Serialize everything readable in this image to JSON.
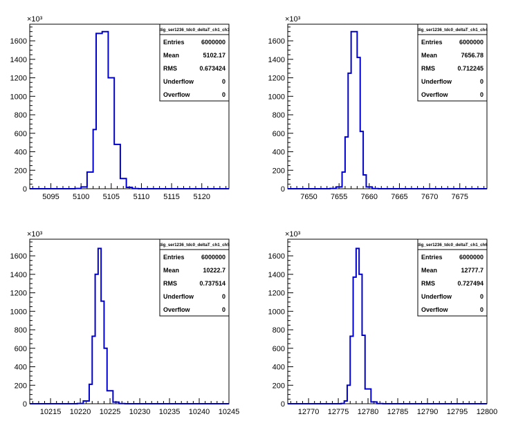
{
  "chart_data": [
    {
      "type": "histogram",
      "title": "dig_ser1236_tdc0_deltaT_ch1_ch3",
      "y_multiplier_label": "×10³",
      "xlim": [
        5091.5,
        5124.5
      ],
      "ylim": [
        0,
        1780
      ],
      "x_ticks": [
        5095,
        5100,
        5105,
        5110,
        5115,
        5120
      ],
      "y_ticks": [
        0,
        200,
        400,
        600,
        800,
        1000,
        1200,
        1400,
        1600
      ],
      "bins": [
        {
          "x": 5099.0,
          "y": 3
        },
        {
          "x": 5100.0,
          "y": 20
        },
        {
          "x": 5101.0,
          "y": 180
        },
        {
          "x": 5102.0,
          "y": 640
        },
        {
          "x": 5102.5,
          "y": 1680
        },
        {
          "x": 5103.5,
          "y": 1700
        },
        {
          "x": 5104.5,
          "y": 1200
        },
        {
          "x": 5105.5,
          "y": 480
        },
        {
          "x": 5106.5,
          "y": 110
        },
        {
          "x": 5107.5,
          "y": 15
        },
        {
          "x": 5108.5,
          "y": 2
        }
      ],
      "stats": [
        {
          "label": "Entries",
          "value": "6000000"
        },
        {
          "label": "Mean",
          "value": "5102.17"
        },
        {
          "label": "RMS",
          "value": "0.673424"
        },
        {
          "label": "Underflow",
          "value": "0"
        },
        {
          "label": "Overflow",
          "value": "0"
        }
      ]
    },
    {
      "type": "histogram",
      "title": "dig_ser1236_tdc0_deltaT_ch1_ch4",
      "y_multiplier_label": "×10³",
      "xlim": [
        7646.5,
        7679.5
      ],
      "ylim": [
        0,
        1780
      ],
      "x_ticks": [
        7650,
        7655,
        7660,
        7665,
        7670,
        7675
      ],
      "y_ticks": [
        0,
        200,
        400,
        600,
        800,
        1000,
        1200,
        1400,
        1600
      ],
      "bins": [
        {
          "x": 7653.5,
          "y": 3
        },
        {
          "x": 7654.5,
          "y": 20
        },
        {
          "x": 7655.5,
          "y": 180
        },
        {
          "x": 7656.0,
          "y": 560
        },
        {
          "x": 7656.5,
          "y": 1250
        },
        {
          "x": 7657.0,
          "y": 1700
        },
        {
          "x": 7658.0,
          "y": 1420
        },
        {
          "x": 7658.5,
          "y": 620
        },
        {
          "x": 7659.0,
          "y": 150
        },
        {
          "x": 7659.5,
          "y": 20
        },
        {
          "x": 7660.5,
          "y": 2
        }
      ],
      "stats": [
        {
          "label": "Entries",
          "value": "6000000"
        },
        {
          "label": "Mean",
          "value": "7656.78"
        },
        {
          "label": "RMS",
          "value": "0.712245"
        },
        {
          "label": "Underflow",
          "value": "0"
        },
        {
          "label": "Overflow",
          "value": "0"
        }
      ]
    },
    {
      "type": "histogram",
      "title": "dig_ser1236_tdc0_deltaT_ch1_ch5",
      "y_multiplier_label": "×10³",
      "xlim": [
        10211.5,
        10245
      ],
      "ylim": [
        0,
        1780
      ],
      "x_ticks": [
        10215,
        10220,
        10225,
        10230,
        10235,
        10240,
        10245
      ],
      "y_ticks": [
        0,
        200,
        400,
        600,
        800,
        1000,
        1200,
        1400,
        1600
      ],
      "bins": [
        {
          "x": 10219.5,
          "y": 3
        },
        {
          "x": 10220.5,
          "y": 30
        },
        {
          "x": 10221.5,
          "y": 210
        },
        {
          "x": 10222.0,
          "y": 730
        },
        {
          "x": 10222.5,
          "y": 1400
        },
        {
          "x": 10223.0,
          "y": 1680
        },
        {
          "x": 10223.5,
          "y": 1110
        },
        {
          "x": 10224.0,
          "y": 600
        },
        {
          "x": 10224.5,
          "y": 140
        },
        {
          "x": 10225.5,
          "y": 18
        },
        {
          "x": 10226.5,
          "y": 2
        }
      ],
      "stats": [
        {
          "label": "Entries",
          "value": "6000000"
        },
        {
          "label": "Mean",
          "value": "10222.7"
        },
        {
          "label": "RMS",
          "value": "0.737514"
        },
        {
          "label": "Underflow",
          "value": "0"
        },
        {
          "label": "Overflow",
          "value": "0"
        }
      ]
    },
    {
      "type": "histogram",
      "title": "dig_ser1236_tdc0_deltaT_ch1_ch6",
      "y_multiplier_label": "×10³",
      "xlim": [
        12766.5,
        12800
      ],
      "ylim": [
        0,
        1780
      ],
      "x_ticks": [
        12770,
        12775,
        12780,
        12785,
        12790,
        12795,
        12800
      ],
      "y_ticks": [
        0,
        200,
        400,
        600,
        800,
        1000,
        1200,
        1400,
        1600
      ],
      "bins": [
        {
          "x": 12775.5,
          "y": 3
        },
        {
          "x": 12776.0,
          "y": 30
        },
        {
          "x": 12776.5,
          "y": 200
        },
        {
          "x": 12777.0,
          "y": 730
        },
        {
          "x": 12777.5,
          "y": 1370
        },
        {
          "x": 12778.0,
          "y": 1680
        },
        {
          "x": 12778.5,
          "y": 1400
        },
        {
          "x": 12779.0,
          "y": 740
        },
        {
          "x": 12779.5,
          "y": 160
        },
        {
          "x": 12780.5,
          "y": 20
        },
        {
          "x": 12781.5,
          "y": 2
        }
      ],
      "stats": [
        {
          "label": "Entries",
          "value": "6000000"
        },
        {
          "label": "Mean",
          "value": "12777.7"
        },
        {
          "label": "RMS",
          "value": "0.727494"
        },
        {
          "label": "Underflow",
          "value": "0"
        },
        {
          "label": "Overflow",
          "value": "0"
        }
      ]
    }
  ],
  "colors": {
    "histogram_line": "#0000cc",
    "axis": "#000000",
    "background": "#ffffff"
  }
}
